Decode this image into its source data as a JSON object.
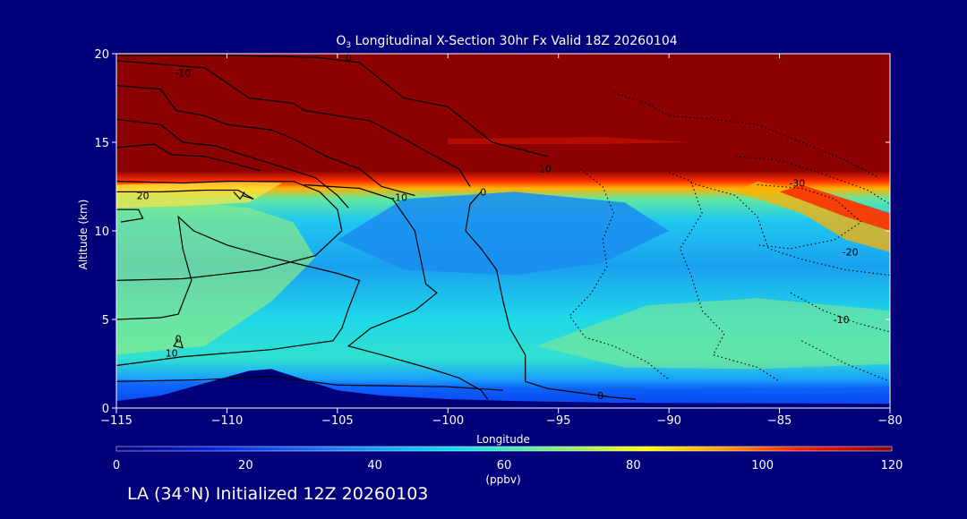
{
  "chart_data": {
    "type": "heatmap",
    "title_prefix": "O",
    "title_sub": "3",
    "title_rest": " Longitudinal X-Section 30hr  Fx Valid 18Z 20260104",
    "xlabel": "Longitude",
    "ylabel": "Altitude (km)",
    "xlim": [
      -115,
      -80
    ],
    "ylim": [
      0,
      20
    ],
    "xticks": [
      -115,
      -110,
      -105,
      -100,
      -95,
      -90,
      -85,
      -80
    ],
    "xtick_labels": [
      "−115",
      "−110",
      "−105",
      "−100",
      "−95",
      "−90",
      "−85",
      "−80"
    ],
    "yticks": [
      0,
      5,
      10,
      15,
      20
    ],
    "ytick_labels": [
      "0",
      "5",
      "10",
      "15",
      "20"
    ],
    "colorbar": {
      "min": 0,
      "max": 120,
      "ticks": [
        0,
        20,
        40,
        60,
        80,
        100,
        120
      ],
      "tick_labels": [
        "0",
        "20",
        "40",
        "60",
        "80",
        "100",
        "120"
      ],
      "unit": "(ppbv)"
    },
    "contour_labels": [
      {
        "text": "0",
        "lon": -104.5,
        "alt": 19.6
      },
      {
        "text": "-10",
        "lon": -112,
        "alt": 18.7
      },
      {
        "text": "20",
        "lon": -113.8,
        "alt": 11.8
      },
      {
        "text": "10",
        "lon": -112.5,
        "alt": 2.9
      },
      {
        "text": "0",
        "lon": -112.2,
        "alt": 3.7
      },
      {
        "text": "-10",
        "lon": -102.2,
        "alt": 11.7
      },
      {
        "text": "0",
        "lon": -98.4,
        "alt": 12.0
      },
      {
        "text": "10",
        "lon": -95.6,
        "alt": 13.3
      },
      {
        "text": "-30",
        "lon": -84.2,
        "alt": 12.5
      },
      {
        "text": "-20",
        "lon": -81.8,
        "alt": 8.6
      },
      {
        "text": "-10",
        "lon": -82.2,
        "alt": 4.8
      },
      {
        "text": "0",
        "lon": -93.1,
        "alt": 0.5
      }
    ],
    "terrain": [
      [
        -115,
        0.4
      ],
      [
        -113,
        0.7
      ],
      [
        -111,
        1.4
      ],
      [
        -109,
        2.1
      ],
      [
        -108,
        2.2
      ],
      [
        -106.5,
        1.6
      ],
      [
        -105,
        1.0
      ],
      [
        -103,
        0.7
      ],
      [
        -100,
        0.5
      ],
      [
        -97,
        0.4
      ],
      [
        -92,
        0.3
      ],
      [
        -80,
        0.25
      ]
    ]
  },
  "footer": {
    "subtitle": "LA (34°N) Initialized 12Z 20260103"
  }
}
